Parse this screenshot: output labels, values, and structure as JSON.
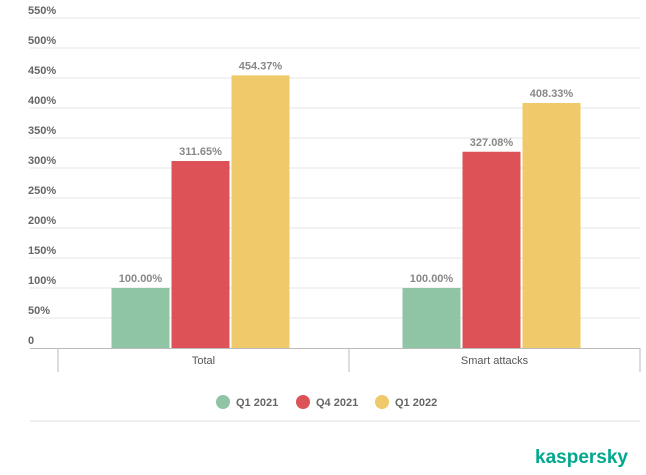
{
  "chart_data": {
    "type": "bar",
    "categories": [
      "Total",
      "Smart attacks"
    ],
    "series": [
      {
        "name": "Q1 2021",
        "color": "#8fc4a5",
        "values": [
          100.0,
          100.0
        ],
        "labels": [
          "100.00%",
          "100.00%"
        ]
      },
      {
        "name": "Q4 2021",
        "color": "#dd5256",
        "values": [
          311.65,
          327.08
        ],
        "labels": [
          "311.65%",
          "327.08%"
        ]
      },
      {
        "name": "Q1 2022",
        "color": "#efc96a",
        "values": [
          454.37,
          408.33
        ],
        "labels": [
          "454.37%",
          "408.33%"
        ]
      }
    ],
    "ylim": [
      0,
      550
    ],
    "yticks": [
      0,
      50,
      100,
      150,
      200,
      250,
      300,
      350,
      400,
      450,
      500,
      550
    ],
    "ytick_labels": [
      "0",
      "50%",
      "100%",
      "150%",
      "200%",
      "250%",
      "300%",
      "350%",
      "400%",
      "450%",
      "500%",
      "550%"
    ],
    "grid": true,
    "legend_position": "bottom-center"
  },
  "branding": {
    "logo_text": "kaspersky"
  }
}
